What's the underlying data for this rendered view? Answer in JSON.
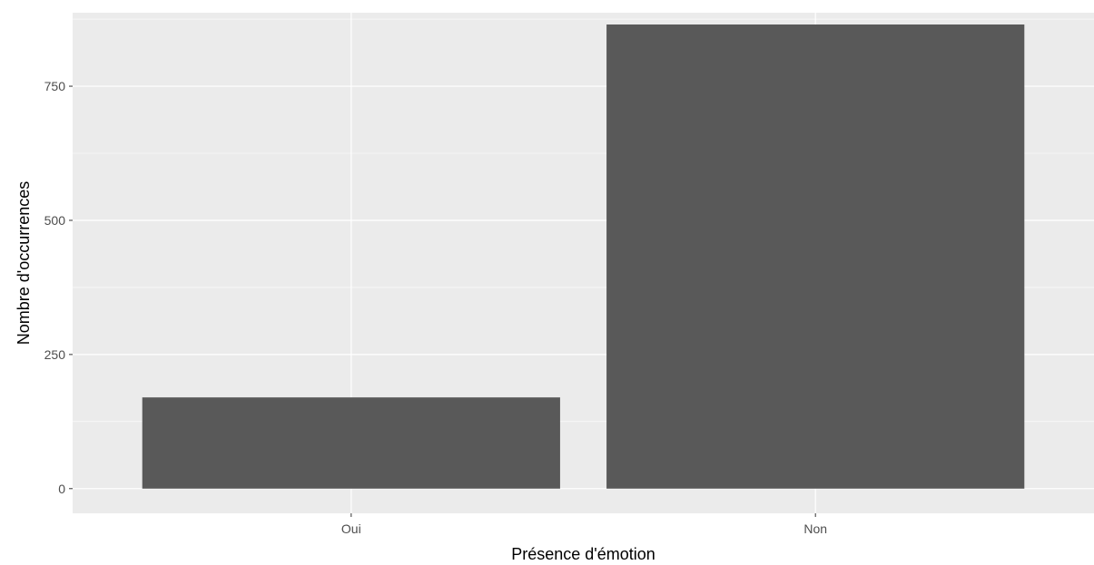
{
  "chart_data": {
    "type": "bar",
    "categories": [
      "Oui",
      "Non"
    ],
    "values": [
      170,
      865
    ],
    "title": "",
    "xlabel": "Présence d'émotion",
    "ylabel": "Nombre d'occurrences",
    "ylim": [
      -46,
      887
    ],
    "yticks": [
      0,
      250,
      500,
      750
    ],
    "ytick_labels": [
      "0",
      "250",
      "500",
      "750"
    ],
    "grid": true,
    "legend": "none",
    "colors": {
      "panel_background": "#EBEBEB",
      "grid_major": "#FFFFFF",
      "bar_fill": "#595959",
      "tick_text": "#4D4D4D",
      "tick_mark": "#333333",
      "axis_title": "#000000"
    }
  }
}
